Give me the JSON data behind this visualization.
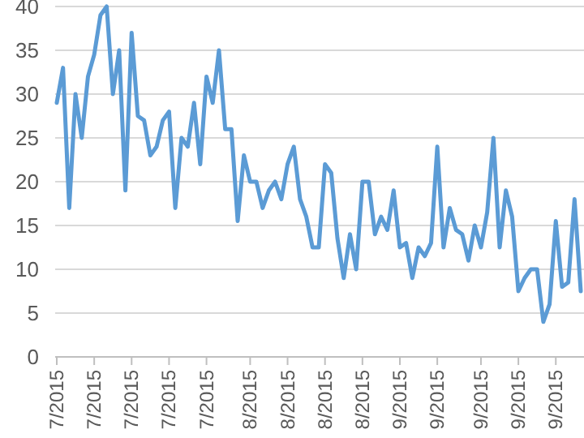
{
  "chart_data": {
    "type": "line",
    "categories": [
      "7/2015",
      null,
      null,
      null,
      null,
      null,
      "7/2015",
      null,
      null,
      null,
      null,
      null,
      "7/2015",
      null,
      null,
      null,
      null,
      null,
      "7/2015",
      null,
      null,
      null,
      null,
      null,
      "7/2015",
      null,
      null,
      null,
      null,
      null,
      null,
      "8/2015",
      null,
      null,
      null,
      null,
      null,
      "8/2015",
      null,
      null,
      null,
      null,
      null,
      "8/2015",
      null,
      null,
      null,
      null,
      null,
      "8/2015",
      null,
      null,
      null,
      null,
      null,
      "9/2015",
      null,
      null,
      null,
      null,
      null,
      "9/2015",
      null,
      null,
      null,
      null,
      null,
      null,
      "9/2015",
      null,
      null,
      null,
      null,
      null,
      "9/2015",
      null,
      null,
      null,
      null,
      null,
      "9/2015",
      null,
      null,
      null,
      null
    ],
    "series": [
      {
        "color": "#5b9bd5",
        "values": [
          29,
          33,
          17,
          30,
          25,
          32,
          34.5,
          39,
          40,
          30,
          35,
          19,
          37,
          27.5,
          27,
          23,
          24,
          27,
          28,
          17,
          25,
          24,
          29,
          22,
          32,
          29,
          35,
          26,
          26,
          15.5,
          23,
          20,
          20,
          17,
          19,
          20,
          18,
          22,
          24,
          18,
          16,
          12.5,
          12.5,
          22,
          21,
          13.5,
          9,
          14,
          10,
          20,
          20,
          14,
          16,
          14.5,
          19,
          12.5,
          13,
          9,
          12.5,
          11.5,
          13,
          24,
          12.5,
          17,
          14.5,
          14,
          11,
          15,
          12.5,
          16.5,
          25,
          12.5,
          19,
          16,
          7.5,
          9,
          10,
          10,
          4,
          6,
          15.5,
          8,
          8.5,
          18,
          7.5
        ]
      }
    ],
    "ylim": [
      0,
      40
    ],
    "yticks": [
      0,
      5,
      10,
      15,
      20,
      25,
      30,
      35,
      40
    ],
    "grid": "y",
    "marker": "none",
    "line_style": "solid"
  }
}
